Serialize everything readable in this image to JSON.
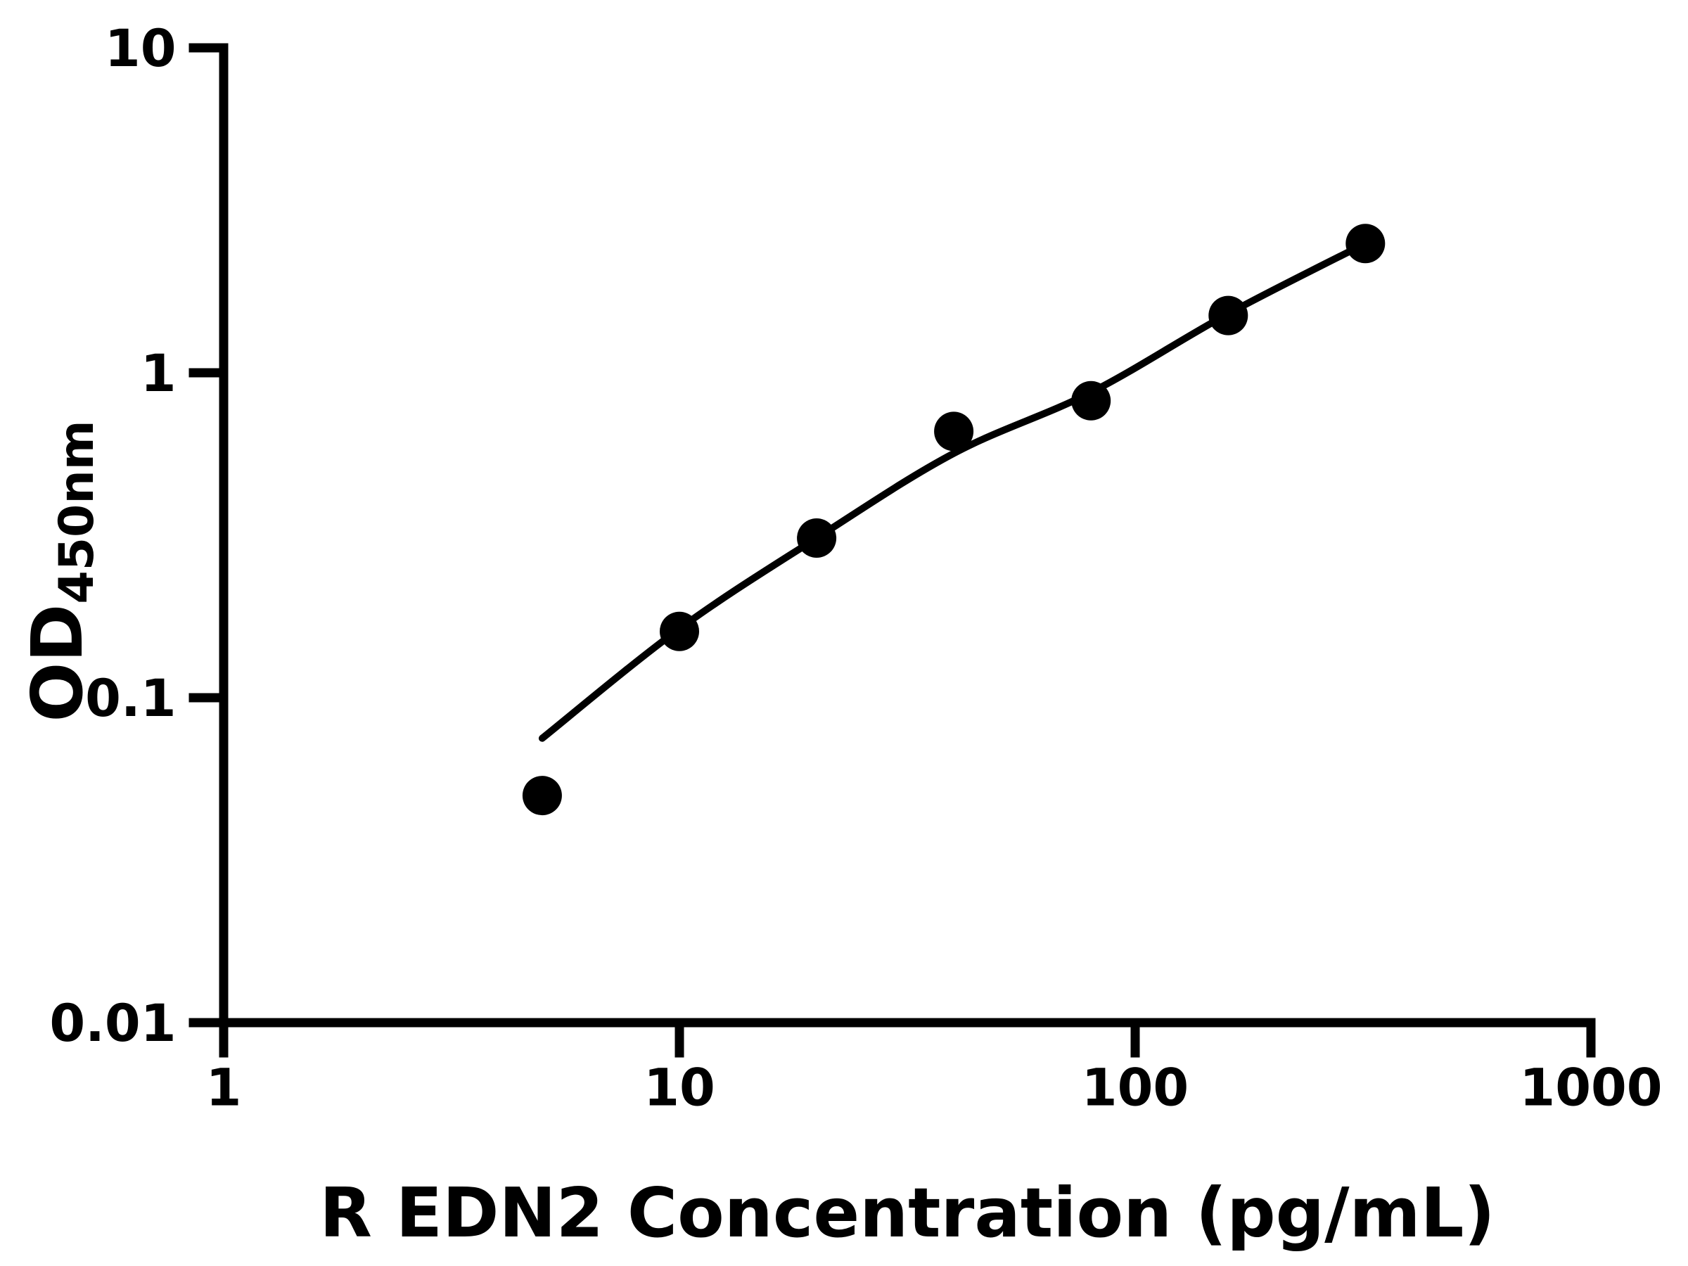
{
  "chart_data": {
    "type": "scatter",
    "title": "",
    "xlabel": "R EDN2 Concentration (pg/mL)",
    "ylabel": "OD",
    "ylabel_sub": "450nm",
    "x_scale": "log",
    "y_scale": "log",
    "xlim": [
      1,
      1000
    ],
    "ylim": [
      0.01,
      10
    ],
    "grid": false,
    "legend": null,
    "x_ticks": [
      {
        "value": 1,
        "label": "1"
      },
      {
        "value": 10,
        "label": "10"
      },
      {
        "value": 100,
        "label": "100"
      },
      {
        "value": 1000,
        "label": "1000"
      }
    ],
    "y_ticks": [
      {
        "value": 10,
        "label": "10"
      },
      {
        "value": 1,
        "label": "1"
      },
      {
        "value": 0.1,
        "label": "0.1"
      },
      {
        "value": 0.01,
        "label": "0.01"
      }
    ],
    "series": [
      {
        "name": "standard-data-points",
        "type": "scatter",
        "marker": "circle",
        "color": "#000000",
        "points": [
          {
            "x": 5,
            "y": 0.05
          },
          {
            "x": 10,
            "y": 0.16
          },
          {
            "x": 20,
            "y": 0.31
          },
          {
            "x": 40,
            "y": 0.66
          },
          {
            "x": 80,
            "y": 0.82
          },
          {
            "x": 160,
            "y": 1.5
          },
          {
            "x": 320,
            "y": 2.5
          }
        ]
      },
      {
        "name": "fitted-standard-curve",
        "type": "line",
        "color": "#000000",
        "points": [
          {
            "x": 5,
            "y": 0.075
          },
          {
            "x": 10,
            "y": 0.163
          },
          {
            "x": 20,
            "y": 0.31
          },
          {
            "x": 40,
            "y": 0.565
          },
          {
            "x": 80,
            "y": 0.87
          },
          {
            "x": 160,
            "y": 1.52
          },
          {
            "x": 320,
            "y": 2.5
          }
        ]
      }
    ],
    "colors": {
      "foreground": "#000000",
      "background": "#ffffff"
    }
  }
}
